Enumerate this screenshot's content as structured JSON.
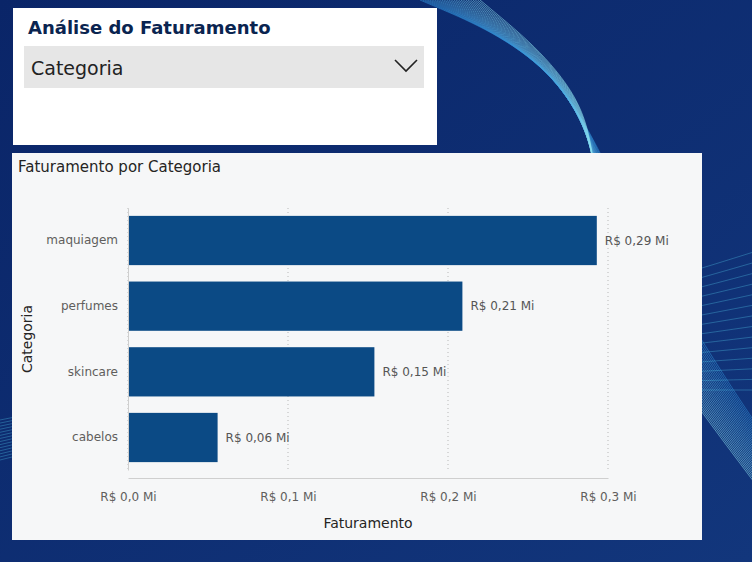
{
  "chart_data": {
    "type": "bar",
    "orientation": "horizontal",
    "title": "Faturamento por Categoria",
    "x_label": "Faturamento",
    "y_label": "Categoria",
    "categories": [
      "maquiagem",
      "perfumes",
      "skincare",
      "cabelos"
    ],
    "values": [
      0.293,
      0.209,
      0.154,
      0.056
    ],
    "value_labels": [
      "R$ 0,29 Mi",
      "R$ 0,21 Mi",
      "R$ 0,15 Mi",
      "R$ 0,06 Mi"
    ],
    "data_labels": true,
    "color": "#0b4a85",
    "xlim": [
      0,
      0.3
    ],
    "xticks": [
      {
        "value": 0,
        "label": "R$ 0,0 Mi"
      },
      {
        "value": 0.1,
        "label": "R$ 0,1 Mi"
      },
      {
        "value": 0.2,
        "label": "R$ 0,2 Mi"
      },
      {
        "value": 0.3,
        "label": "R$ 0,3 Mi"
      }
    ],
    "grid": true
  },
  "slicer": {
    "title": "Análise do Faturamento",
    "field": "Categoria"
  }
}
